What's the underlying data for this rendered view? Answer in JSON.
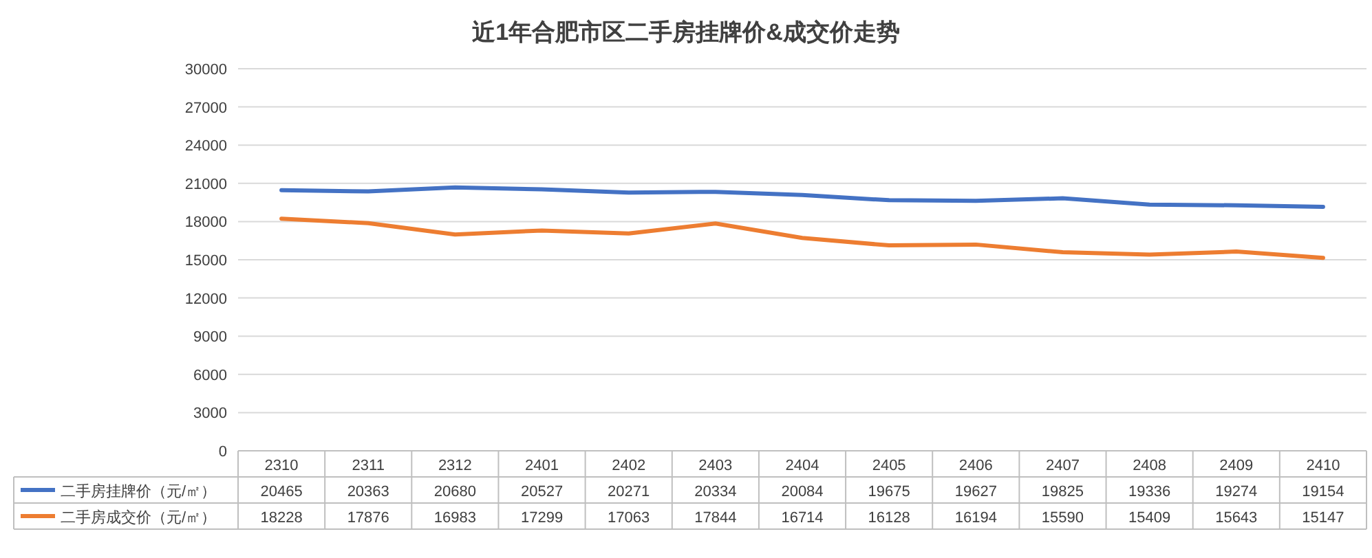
{
  "chart_data": {
    "type": "line",
    "title": "近1年合肥市区二手房挂牌价&成交价走势",
    "categories": [
      "2310",
      "2311",
      "2312",
      "2401",
      "2402",
      "2403",
      "2404",
      "2405",
      "2406",
      "2407",
      "2408",
      "2409",
      "2410"
    ],
    "series": [
      {
        "name": "二手房挂牌价（元/㎡）",
        "color": "#4472c4",
        "values": [
          20465,
          20363,
          20680,
          20527,
          20271,
          20334,
          20084,
          19675,
          19627,
          19825,
          19336,
          19274,
          19154
        ]
      },
      {
        "name": "二手房成交价（元/㎡）",
        "color": "#ed7d31",
        "values": [
          18228,
          17876,
          16983,
          17299,
          17063,
          17844,
          16714,
          16128,
          16194,
          15590,
          15409,
          15643,
          15147
        ]
      }
    ],
    "ylim": [
      0,
      30000
    ],
    "yticks": [
      0,
      3000,
      6000,
      9000,
      12000,
      15000,
      18000,
      21000,
      24000,
      27000,
      30000
    ],
    "grid": "y",
    "legend": "bottom",
    "data_labels": true,
    "marker": "none",
    "line_style": "solid"
  }
}
